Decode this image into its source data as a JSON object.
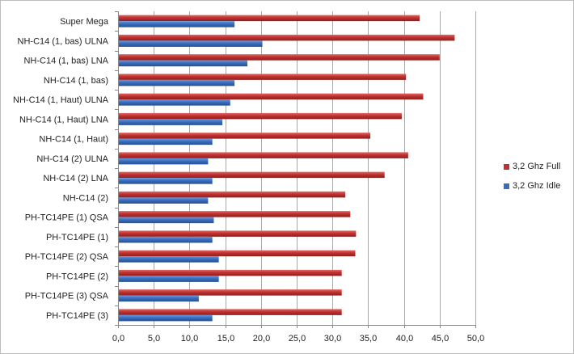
{
  "chart_data": {
    "type": "bar",
    "orientation": "horizontal",
    "categories": [
      "Super Mega",
      "NH-C14 (1, bas) ULNA",
      "NH-C14 (1, bas) LNA",
      "NH-C14 (1, bas)",
      "NH-C14 (1, Haut) ULNA",
      "NH-C14 (1, Haut) LNA",
      "NH-C14 (1, Haut)",
      "NH-C14 (2) ULNA",
      "NH-C14 (2) LNA",
      "NH-C14 (2)",
      "PH-TC14PE (1) QSA",
      "PH-TC14PE (1)",
      "PH-TC14PE (2) QSA",
      "PH-TC14PE (2)",
      "PH-TC14PE (3) QSA",
      "PH-TC14PE (3)"
    ],
    "series": [
      {
        "name": "3,2 Ghz Full",
        "color": "#c0312f",
        "values": [
          42.2,
          47.1,
          45.0,
          40.3,
          42.7,
          39.7,
          35.3,
          40.6,
          37.3,
          31.8,
          32.5,
          33.3,
          33.2,
          31.3,
          31.3,
          31.3
        ]
      },
      {
        "name": "3,2 Ghz Idle",
        "color": "#3a6dbf",
        "values": [
          16.3,
          20.2,
          18.1,
          16.3,
          15.7,
          14.6,
          13.2,
          12.6,
          13.2,
          12.6,
          13.4,
          13.2,
          14.1,
          14.1,
          11.3,
          13.2
        ]
      }
    ],
    "xlim": [
      0,
      50
    ],
    "xticks": [
      "0,0",
      "5,0",
      "10,0",
      "15,0",
      "20,0",
      "25,0",
      "30,0",
      "35,0",
      "40,0",
      "45,0",
      "50,0"
    ],
    "grid": true,
    "legend_position": "right"
  }
}
